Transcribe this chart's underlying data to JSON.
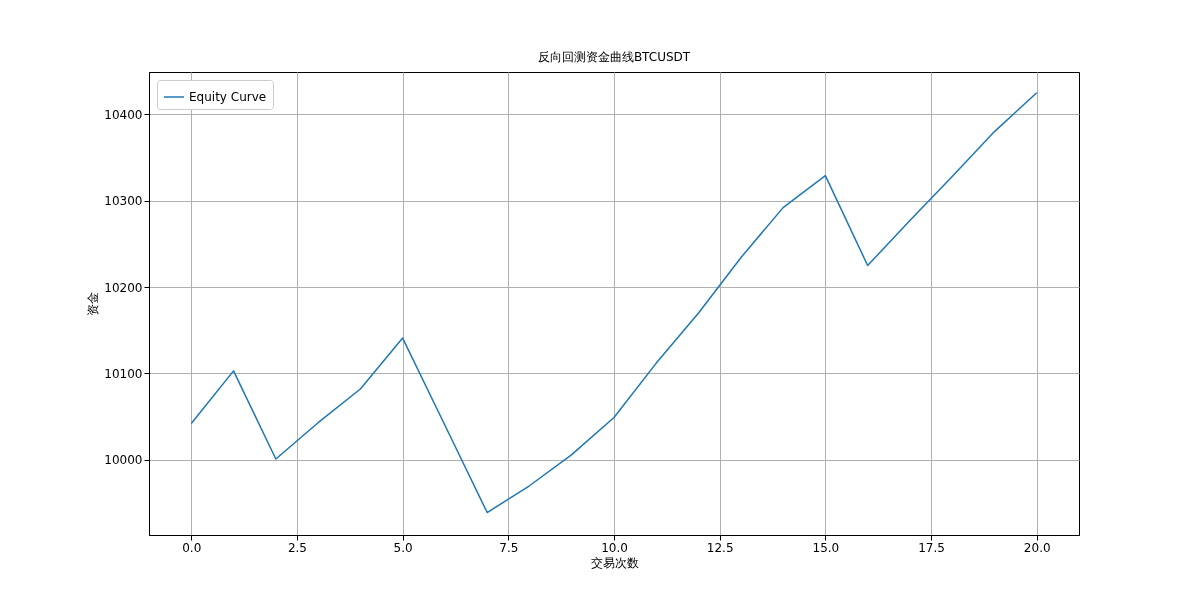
{
  "chart_data": {
    "type": "line",
    "title": "反向回测资金曲线BTCUSDT",
    "xlabel": "交易次数",
    "ylabel": "资金",
    "x": [
      0,
      1,
      2,
      3,
      4,
      5,
      6,
      7,
      8,
      9,
      10,
      11,
      12,
      13,
      14,
      15,
      16,
      17,
      18,
      19,
      20
    ],
    "series": [
      {
        "name": "Equity Curve",
        "color": "#1f77b4",
        "values": [
          10042,
          10103,
          10001,
          10043,
          10082,
          10141,
          10040,
          9939,
          9970,
          10006,
          10049,
          10112,
          10170,
          10234,
          10292,
          10329,
          10225,
          10277,
          10328,
          10380,
          10425
        ]
      }
    ],
    "xlim": [
      -1,
      21
    ],
    "ylim": [
      9913,
      10449
    ],
    "xticks": [
      {
        "value": 0,
        "label": "0.0"
      },
      {
        "value": 2.5,
        "label": "2.5"
      },
      {
        "value": 5,
        "label": "5.0"
      },
      {
        "value": 7.5,
        "label": "7.5"
      },
      {
        "value": 10,
        "label": "10.0"
      },
      {
        "value": 12.5,
        "label": "12.5"
      },
      {
        "value": 15,
        "label": "15.0"
      },
      {
        "value": 17.5,
        "label": "17.5"
      },
      {
        "value": 20,
        "label": "20.0"
      }
    ],
    "yticks": [
      10000,
      10100,
      10200,
      10300,
      10400
    ],
    "grid": true,
    "legend": "top left",
    "marker": "none",
    "line_style": "solid"
  }
}
